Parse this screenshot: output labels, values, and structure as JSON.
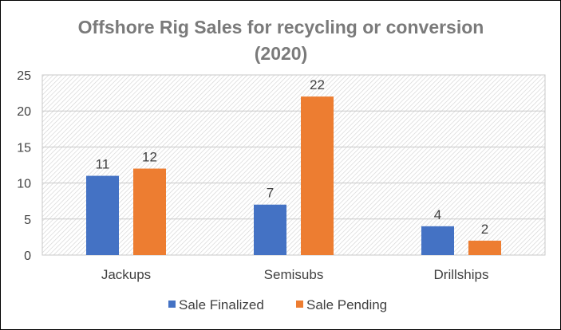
{
  "chart_data": {
    "type": "bar",
    "title_line1": "Offshore Rig Sales for recycling or conversion",
    "title_line2": "(2020)",
    "categories": [
      "Jackups",
      "Semisubs",
      "Drillships"
    ],
    "series": [
      {
        "name": "Sale Finalized",
        "values": [
          11,
          7,
          4
        ],
        "color": "#4472C4"
      },
      {
        "name": "Sale Pending",
        "values": [
          12,
          22,
          2
        ],
        "color": "#ED7D31"
      }
    ],
    "ylim": [
      0,
      25
    ],
    "yticks": [
      0,
      5,
      10,
      15,
      20,
      25
    ],
    "grid": true,
    "plot_fill": "hatched",
    "legend_position": "bottom"
  }
}
